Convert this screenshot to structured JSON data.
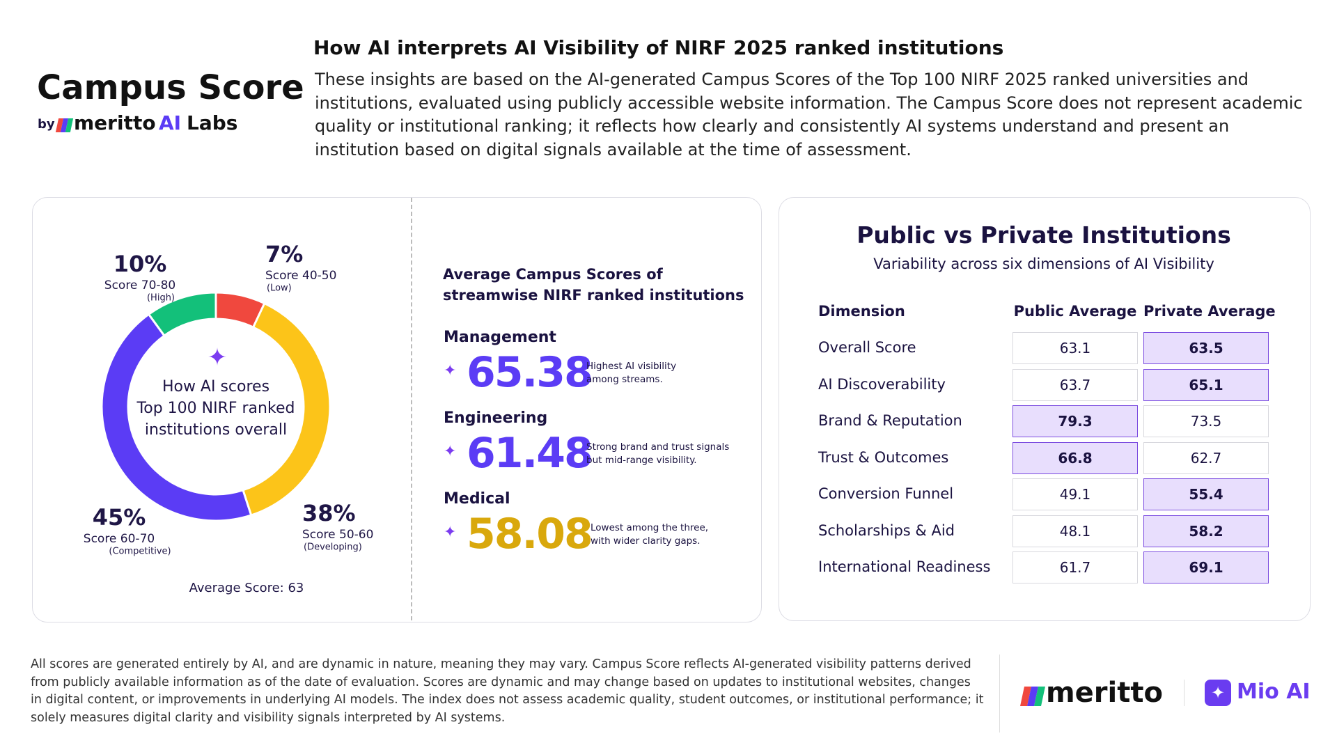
{
  "brand": {
    "title": "Campus Score",
    "by": "by",
    "name": "meritto",
    "ai": "AI",
    "labs": "Labs"
  },
  "header": {
    "title": "How AI interprets AI Visibility of NIRF 2025 ranked institutions",
    "description": "These insights are based on the AI-generated Campus Scores of the Top 100 NIRF 2025 ranked universities and institutions, evaluated using publicly accessible website information. The Campus Score does not represent academic quality or institutional ranking; it reflects how clearly and consistently AI systems understand and present an institution based on digital signals available at the time of assessment."
  },
  "chart_data": {
    "type": "pie",
    "categories": [
      "Score 40-50",
      "Score 50-60",
      "Score 60-70",
      "Score 70-80"
    ],
    "category_notes": [
      "(Low)",
      "(Developing)",
      "(Competitive)",
      "(High)"
    ],
    "values": [
      7,
      38,
      45,
      10
    ],
    "value_labels": [
      "7%",
      "38%",
      "45%",
      "10%"
    ],
    "colors": [
      "#f0483e",
      "#fcc419",
      "#5b3cf5",
      "#13c07a"
    ],
    "center_text": [
      "How AI scores",
      "Top 100 NIRF ranked",
      "institutions overall"
    ],
    "note": "Average Score: 63"
  },
  "streams": {
    "title": [
      "Average Campus Scores of",
      "streamwise NIRF ranked institutions"
    ],
    "items": [
      {
        "name": "Management",
        "score": 65.38,
        "color": "#5b3cf5",
        "description": [
          "Highest AI visibility",
          "among streams."
        ]
      },
      {
        "name": "Engineering",
        "score": 61.48,
        "color": "#5b3cf5",
        "description": [
          "Strong brand and trust signals",
          "but mid-range visibility."
        ]
      },
      {
        "name": "Medical",
        "score": 58.08,
        "color": "#d9a80c",
        "description": [
          "Lowest among the three,",
          "with wider clarity gaps."
        ]
      }
    ]
  },
  "comparison": {
    "title": "Public vs Private Institutions",
    "subtitle": "Variability across six dimensions of AI Visibility",
    "columns": [
      "Dimension",
      "Public Average",
      "Private Average"
    ],
    "rows": [
      [
        "Overall Score",
        63.1,
        63.5
      ],
      [
        "AI Discoverability",
        63.7,
        65.1
      ],
      [
        "Brand & Reputation",
        79.3,
        73.5
      ],
      [
        "Trust & Outcomes",
        66.8,
        62.7
      ],
      [
        "Conversion Funnel",
        49.1,
        55.4
      ],
      [
        "Scholarships & Aid",
        48.1,
        58.2
      ],
      [
        "International Readiness",
        61.7,
        69.1
      ]
    ]
  },
  "footer": {
    "disclaimer": "All scores are generated entirely by AI, and are dynamic in nature, meaning they may vary. Campus Score reflects AI-generated visibility patterns derived from publicly available information as of the date of evaluation. Scores are dynamic and may change based on updates to institutional websites, changes in digital content, or improvements in underlying AI models. The index does not assess academic quality, student outcomes, or institutional performance; it solely measures digital clarity and visibility signals interpreted by AI systems.",
    "logos": [
      "meritto",
      "Mio AI"
    ]
  }
}
